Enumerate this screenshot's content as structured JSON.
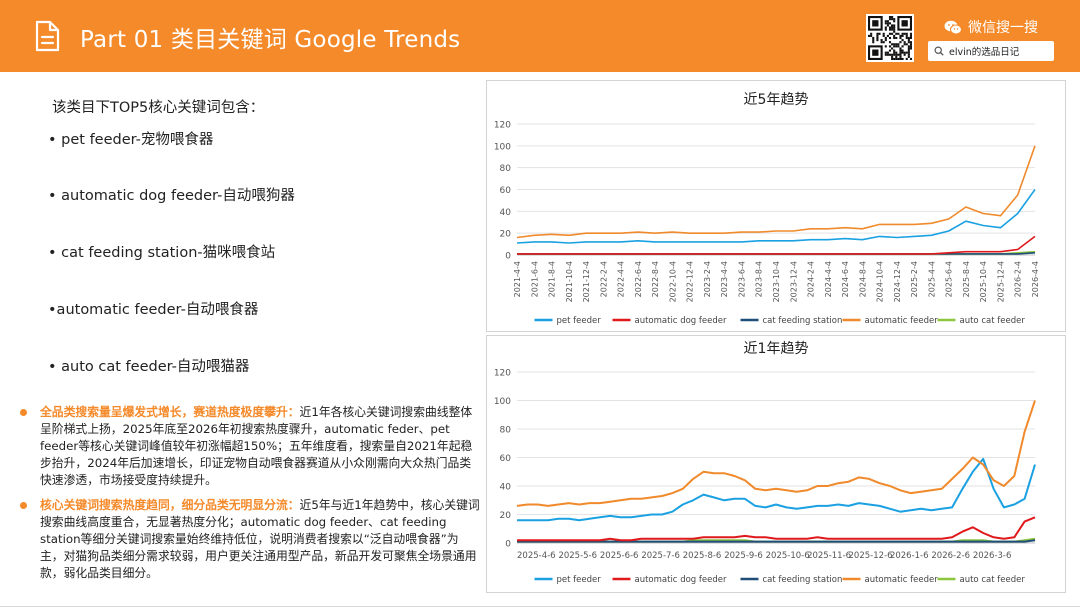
{
  "header": {
    "title": "Part 01 类目关键词 Google Trends",
    "brand": "微信搜一搜",
    "search_text": "elvin的选品日记",
    "bg_color": "#F58A2B"
  },
  "intro": "该类目下TOP5核心关键词包含：",
  "keywords": [
    "• pet feeder-宠物喂食器",
    "• automatic dog feeder-自动喂狗器",
    "• cat feeding station-猫咪喂食站",
    "•automatic feeder-自动喂食器",
    "• auto cat feeder-自动喂猫器"
  ],
  "notes": [
    {
      "highlight": "全品类搜索量呈爆发式增长，赛道热度极度攀升：",
      "text": "近1年各核心关键词搜索曲线整体呈阶梯式上扬，2025年底至2026年初搜索热度骤升，automatic feder、pet feeder等核心关键词峰值较年初涨幅超150%；五年维度看，搜索量自2021年起稳步抬升，2024年后加速增长，印证宠物自动喂食器赛道从小众刚需向大众热门品类快速渗透，市场接受度持续提升。"
    },
    {
      "highlight": "核心关键词搜索热度趋同，细分品类无明显分流：",
      "text": "近5年与近1年趋势中，核心关键词搜索曲线高度重合，无显著热度分化；automatic dog feeder、cat feeding station等细分关键词搜索量始终维持低位，说明消费者搜索以“泛自动喂食器”为主，对猫狗品类细分需求较弱，用户更关注通用型产品，新品开发可聚焦全场景通用款，弱化品类目细分。"
    }
  ],
  "chart_data": [
    {
      "type": "line",
      "title": "近5年趋势",
      "ylim": [
        0,
        120
      ],
      "yticks": [
        0,
        20,
        40,
        60,
        80,
        100,
        120
      ],
      "x_tick_labels": [
        "2021-4-4",
        "2021-6-4",
        "2021-8-4",
        "2021-10-4",
        "2021-12-4",
        "2022-2-4",
        "2022-4-4",
        "2022-6-4",
        "2022-8-4",
        "2022-10-4",
        "2022-12-4",
        "2023-2-4",
        "2023-4-4",
        "2023-6-4",
        "2023-8-4",
        "2023-10-4",
        "2023-12-4",
        "2024-2-4",
        "2024-4-4",
        "2024-6-4",
        "2024-8-4",
        "2024-10-4",
        "2024-12-4",
        "2025-2-4",
        "2025-4-4",
        "2025-6-4",
        "2025-8-4",
        "2025-10-4",
        "2025-12-4",
        "2026-2-4",
        "2026-4-4"
      ],
      "x": [
        0,
        1,
        2,
        3,
        4,
        5,
        6,
        7,
        8,
        9,
        10,
        11,
        12,
        13,
        14,
        15,
        16,
        17,
        18,
        19,
        20,
        21,
        22,
        23,
        24,
        25,
        26,
        27,
        28,
        29,
        30
      ],
      "series": [
        {
          "name": "pet feeder",
          "color": "#1BA1E2",
          "values": [
            11,
            12,
            12,
            11,
            12,
            12,
            12,
            13,
            12,
            12,
            12,
            12,
            12,
            12,
            13,
            13,
            13,
            14,
            14,
            15,
            14,
            17,
            16,
            17,
            18,
            22,
            31,
            27,
            25,
            38,
            60
          ]
        },
        {
          "name": "automatic dog feeder",
          "color": "#E0191C",
          "values": [
            1,
            1,
            1,
            1,
            1,
            1,
            1,
            1,
            1,
            1,
            1,
            1,
            1,
            1,
            1,
            1,
            1,
            1,
            1,
            1,
            1,
            1,
            1,
            1,
            1,
            2,
            3,
            3,
            3,
            5,
            17
          ]
        },
        {
          "name": "cat feeding station",
          "color": "#1F4E79",
          "values": [
            1,
            1,
            1,
            1,
            1,
            1,
            1,
            1,
            1,
            1,
            1,
            1,
            1,
            1,
            1,
            1,
            1,
            1,
            1,
            1,
            1,
            1,
            1,
            1,
            1,
            1,
            1,
            1,
            1,
            1,
            2
          ]
        },
        {
          "name": "automatic feeder",
          "color": "#F08A2C",
          "values": [
            16,
            18,
            19,
            18,
            20,
            20,
            20,
            21,
            20,
            21,
            20,
            20,
            20,
            21,
            21,
            22,
            22,
            24,
            24,
            25,
            24,
            28,
            28,
            28,
            29,
            33,
            44,
            38,
            36,
            55,
            100
          ]
        },
        {
          "name": "auto cat feeder",
          "color": "#8CC63F",
          "values": [
            1,
            1,
            1,
            1,
            1,
            1,
            1,
            1,
            1,
            1,
            1,
            1,
            1,
            1,
            1,
            1,
            1,
            1,
            1,
            1,
            1,
            1,
            1,
            1,
            1,
            1,
            1,
            1,
            1,
            2,
            3
          ]
        }
      ]
    },
    {
      "type": "line",
      "title": "近1年趋势",
      "ylim": [
        0,
        120
      ],
      "yticks": [
        0,
        20,
        40,
        60,
        80,
        100,
        120
      ],
      "x_tick_labels": [
        "2025-4-6",
        "2025-5-6",
        "2025-6-6",
        "2025-7-6",
        "2025-8-6",
        "2025-9-6",
        "2025-10-6",
        "2025-11-6",
        "2025-12-6",
        "2026-1-6",
        "2026-2-6",
        "2026-3-6"
      ],
      "x_tick_positions": [
        0,
        4,
        8,
        12,
        16,
        20,
        24,
        28,
        32,
        36,
        40,
        44
      ],
      "x": [
        0,
        1,
        2,
        3,
        4,
        5,
        6,
        7,
        8,
        9,
        10,
        11,
        12,
        13,
        14,
        15,
        16,
        17,
        18,
        19,
        20,
        21,
        22,
        23,
        24,
        25,
        26,
        27,
        28,
        29,
        30,
        31,
        32,
        33,
        34,
        35,
        36,
        37,
        38,
        39,
        40,
        41,
        42,
        43,
        44,
        45,
        46,
        47,
        48,
        49,
        50
      ],
      "series": [
        {
          "name": "pet feeder",
          "color": "#1BA1E2",
          "values": [
            16,
            16,
            16,
            16,
            17,
            17,
            16,
            17,
            18,
            19,
            18,
            18,
            19,
            20,
            20,
            22,
            27,
            30,
            34,
            32,
            30,
            31,
            31,
            26,
            25,
            27,
            25,
            24,
            25,
            26,
            26,
            27,
            26,
            28,
            27,
            26,
            24,
            22,
            23,
            24,
            23,
            24,
            25,
            38,
            50,
            59,
            38,
            25,
            27,
            31,
            55
          ]
        },
        {
          "name": "automatic dog feeder",
          "color": "#E0191C",
          "values": [
            2,
            2,
            2,
            2,
            2,
            2,
            2,
            2,
            2,
            3,
            2,
            2,
            3,
            3,
            3,
            3,
            3,
            3,
            4,
            4,
            4,
            4,
            5,
            4,
            4,
            3,
            3,
            3,
            3,
            4,
            3,
            3,
            3,
            3,
            3,
            3,
            3,
            3,
            3,
            3,
            3,
            3,
            4,
            8,
            11,
            7,
            4,
            3,
            4,
            15,
            18
          ]
        },
        {
          "name": "cat feeding station",
          "color": "#1F4E79",
          "values": [
            1,
            1,
            1,
            1,
            1,
            1,
            1,
            1,
            1,
            1,
            1,
            1,
            1,
            1,
            1,
            1,
            1,
            1,
            1,
            1,
            1,
            1,
            1,
            1,
            1,
            1,
            1,
            1,
            1,
            1,
            1,
            1,
            1,
            1,
            1,
            1,
            1,
            1,
            1,
            1,
            1,
            1,
            1,
            1,
            1,
            1,
            1,
            1,
            1,
            1,
            2
          ]
        },
        {
          "name": "automatic feeder",
          "color": "#F08A2C",
          "values": [
            26,
            27,
            27,
            26,
            27,
            28,
            27,
            28,
            28,
            29,
            30,
            31,
            31,
            32,
            33,
            35,
            38,
            45,
            50,
            49,
            49,
            47,
            44,
            38,
            37,
            38,
            37,
            36,
            37,
            40,
            40,
            42,
            43,
            46,
            45,
            42,
            40,
            37,
            35,
            36,
            37,
            38,
            45,
            52,
            60,
            55,
            44,
            40,
            47,
            78,
            100
          ]
        },
        {
          "name": "auto cat feeder",
          "color": "#8CC63F",
          "values": [
            1,
            1,
            1,
            1,
            1,
            1,
            1,
            1,
            1,
            1,
            1,
            1,
            1,
            1,
            1,
            1,
            1,
            2,
            2,
            2,
            2,
            2,
            2,
            1,
            1,
            1,
            1,
            1,
            1,
            1,
            1,
            1,
            1,
            1,
            1,
            1,
            1,
            1,
            1,
            1,
            1,
            1,
            1,
            2,
            2,
            2,
            1,
            1,
            1,
            2,
            3
          ]
        }
      ]
    }
  ]
}
